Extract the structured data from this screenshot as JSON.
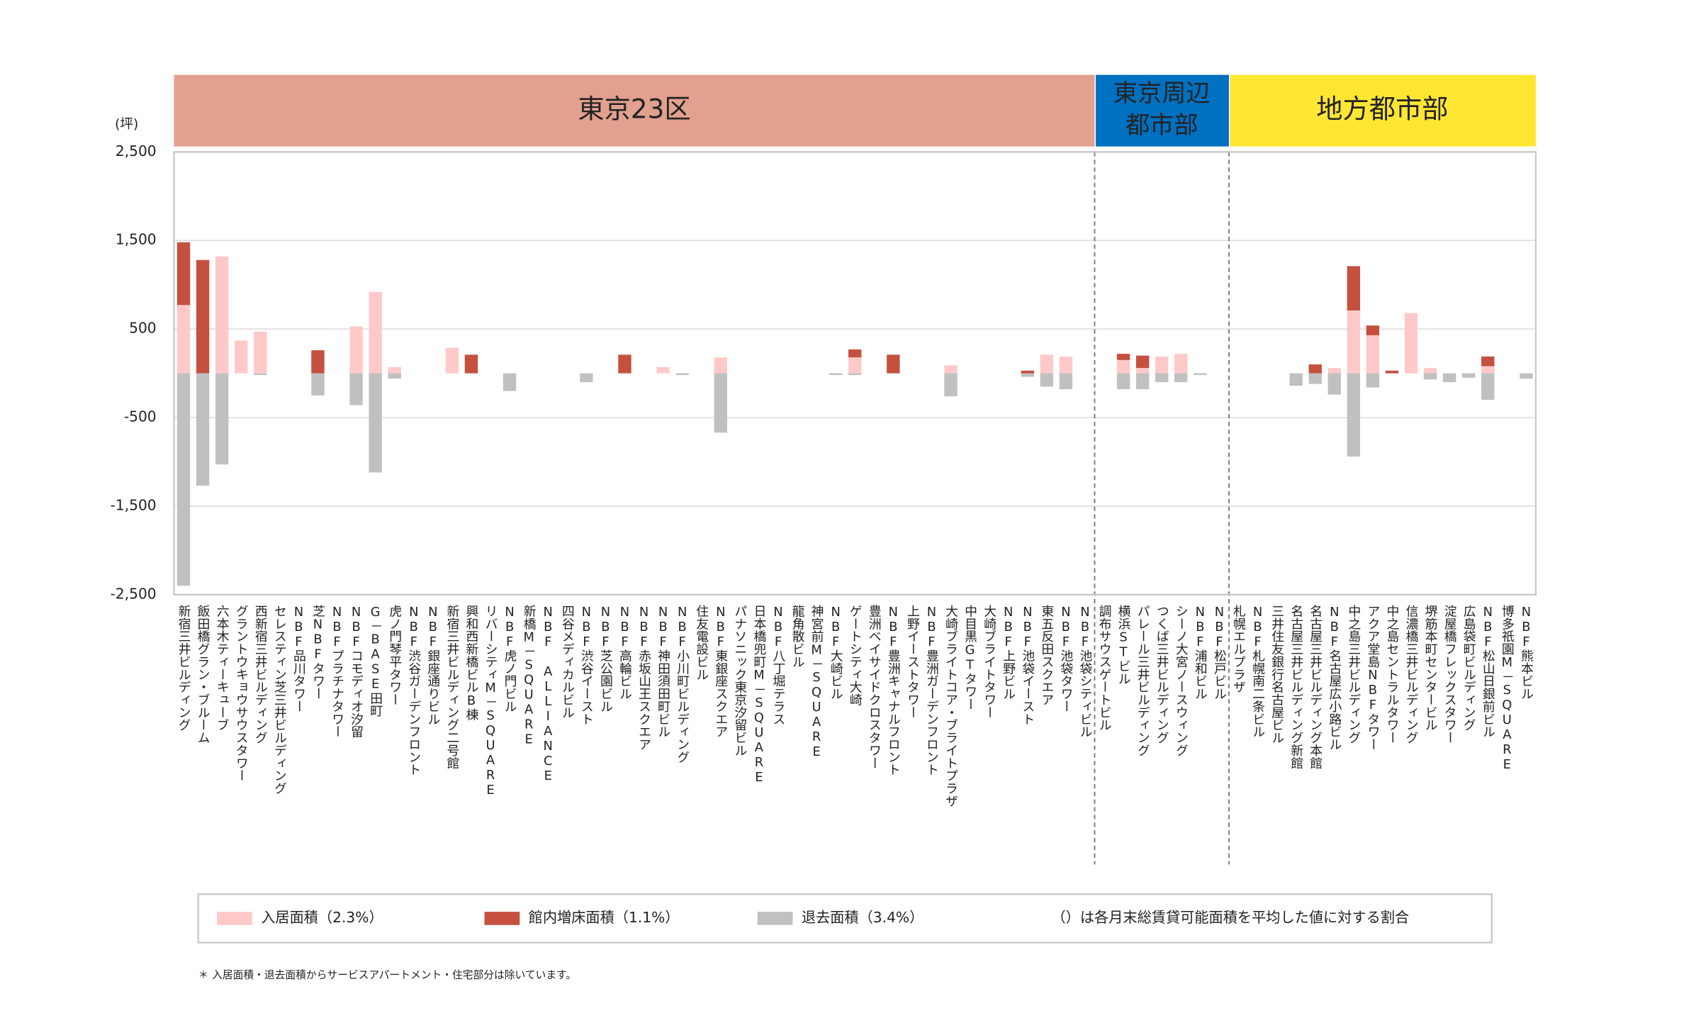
{
  "chart_data": {
    "type": "bar",
    "stacked": true,
    "y_unit": "(坪)",
    "groups": [
      {
        "label": [
          "東京23区"
        ],
        "color": "#e2a08e",
        "text_color": "#ffffff",
        "categories": [
          "新宿三井ビルディング",
          "飯田橋グラン・ブルーム",
          "六本木ティーキューブ",
          "グラントウキョウサウスタワー",
          "西新宿三井ビルディング",
          "セレスティン芝三井ビルディング",
          "NBF品川タワー",
          "芝NBFタワー",
          "NBFプラチナタワー",
          "NBFコモディオ汐留",
          "G－BASE田町",
          "虎ノ門琴平タワー",
          "NBF渋谷ガーデンフロント",
          "NBF銀座通りビル",
          "新宿三井ビルディング二号館",
          "興和西新橋ビルB棟",
          "リバーシティM－SQUARE",
          "NBF虎ノ門ビル",
          "新橋M－SQUARE",
          "NBF ALLIANCE",
          "四谷メディカルビル",
          "NBF渋谷イースト",
          "NBF芝公園ビル",
          "NBF高輪ビル",
          "NBF赤坂山王スクエア",
          "NBF神田須田町ビル",
          "NBF小川町ビルディング",
          "住友電設ビル",
          "NBF東銀座スクエア",
          "パナソニック東京汐留ビル",
          "日本橋兜町M－SQUARE",
          "NBF八丁堀テラス",
          "龍角散ビル",
          "神宮前M－SQUARE",
          "NBF大崎ビル",
          "ゲートシティ大崎",
          "豊洲ベイサイドクロスタワー",
          "NBF豊洲キャナルフロント",
          "上野イーストタワー",
          "NBF豊洲ガーデンフロント",
          "大崎ブライトコア・ブライトプラザ",
          "中目黒GTタワー",
          "大崎ブライトタワー",
          "NBF上野ビル",
          "NBF池袋イースト",
          "東五反田スクエア",
          "NBF池袋タワー",
          "NBF池袋シティビル"
        ]
      },
      {
        "label": [
          "東京周辺",
          "都市部"
        ],
        "color": "#0070c0",
        "text_color": "#ffffff",
        "categories": [
          "調布サウスゲートビル",
          "横浜STビル",
          "パレール三井ビルディング",
          "つくば三井ビルディング",
          "シーノ大宮ノースウィング",
          "NBF浦和ビル",
          "NBF松戸ビル"
        ]
      },
      {
        "label": [
          "地方都市部"
        ],
        "color": "#ffe633",
        "text_color": "#222222",
        "categories": [
          "札幌エルプラザ",
          "NBF札幌南二条ビル",
          "三井住友銀行名古屋ビル",
          "名古屋三井ビルディング新館",
          "名古屋三井ビルディング本館",
          "NBF名古屋広小路ビル",
          "中之島三井ビルディング",
          "アクア堂島NBFタワー",
          "中之島セントラルタワー",
          "信濃橋三井ビルディング",
          "堺筋本町センタービル",
          "淀屋橋フレックスタワー",
          "広島袋町ビルディング",
          "NBF松山日銀前ビル",
          "博多祇園M－SQUARE",
          "NBF熊本ビル"
        ]
      }
    ],
    "series": [
      {
        "name": "入居面積（2.3%）",
        "color": "#ffc9c9",
        "values": [
          771,
          0,
          1320,
          370,
          470,
          0,
          0,
          0,
          0,
          530,
          920,
          70,
          0,
          0,
          290,
          0,
          0,
          0,
          0,
          0,
          0,
          0,
          0,
          0,
          0,
          70,
          0,
          0,
          180,
          0,
          0,
          0,
          0,
          0,
          0,
          180,
          0,
          0,
          0,
          0,
          90,
          0,
          0,
          0,
          0,
          210,
          190,
          0,
          0,
          150,
          60,
          190,
          220,
          0,
          0,
          0,
          0,
          0,
          0,
          0,
          60,
          710,
          430,
          0,
          680,
          60,
          0,
          0,
          80,
          0,
          0
        ]
      },
      {
        "name": "館内増床面積（1.1%）",
        "color": "#c5503e",
        "values": [
          709,
          1280,
          0,
          0,
          0,
          0,
          0,
          260,
          0,
          0,
          0,
          0,
          0,
          0,
          0,
          210,
          0,
          0,
          0,
          0,
          0,
          0,
          0,
          210,
          0,
          0,
          0,
          0,
          0,
          0,
          0,
          0,
          0,
          0,
          0,
          90,
          0,
          210,
          0,
          0,
          0,
          0,
          0,
          0,
          30,
          0,
          0,
          0,
          0,
          70,
          140,
          0,
          0,
          0,
          0,
          0,
          0,
          0,
          0,
          100,
          0,
          500,
          110,
          30,
          0,
          0,
          0,
          0,
          110,
          0,
          0
        ]
      },
      {
        "name": "退去面積（3.4%）",
        "color": "#c0c0c0",
        "values": [
          -2400,
          -1270,
          -1030,
          0,
          -20,
          0,
          0,
          -250,
          0,
          -360,
          -1120,
          -60,
          0,
          0,
          0,
          0,
          0,
          -200,
          0,
          0,
          0,
          -100,
          0,
          0,
          0,
          0,
          -20,
          0,
          -670,
          0,
          0,
          0,
          0,
          0,
          -20,
          -20,
          0,
          0,
          0,
          0,
          -260,
          0,
          0,
          0,
          -40,
          -150,
          -180,
          0,
          0,
          -180,
          -180,
          -100,
          -100,
          -20,
          0,
          0,
          0,
          0,
          -140,
          -120,
          -240,
          -940,
          -160,
          0,
          0,
          -70,
          -100,
          -50,
          -300,
          0,
          -60
        ]
      }
    ],
    "legend_note": "（）は各月末総賃貸可能面積を平均した値に対する割合",
    "footnote": "＊ 入居面積・退去面積からサービスアパートメント・住宅部分は除いています。",
    "ylim": [
      -2500,
      2500
    ],
    "yticks": [
      {
        "value": 2500,
        "label": "2,500"
      },
      {
        "value": 1500,
        "label": "1,500"
      },
      500,
      -500,
      {
        "value": -1500,
        "label": "-1,500"
      },
      {
        "value": -2500,
        "label": "-2,500"
      }
    ],
    "grid": true
  }
}
